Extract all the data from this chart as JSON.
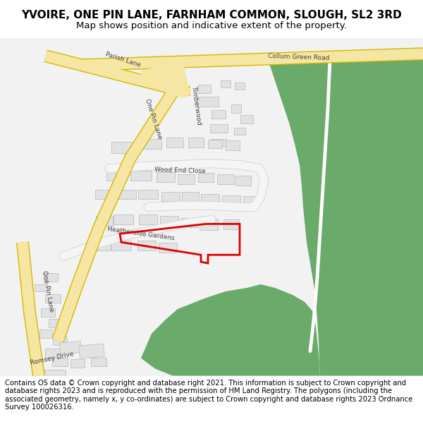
{
  "title": "YVOIRE, ONE PIN LANE, FARNHAM COMMON, SLOUGH, SL2 3RD",
  "subtitle": "Map shows position and indicative extent of the property.",
  "footer": "Contains OS data © Crown copyright and database right 2021. This information is subject to Crown copyright and database rights 2023 and is reproduced with the permission of HM Land Registry. The polygons (including the associated geometry, namely x, y co-ordinates) are subject to Crown copyright and database rights 2023 Ordnance Survey 100026316.",
  "bg_color": "#ffffff",
  "map_bg": "#f2f2f2",
  "road_fill": "#f5e6a3",
  "road_edge": "#d4b800",
  "bldg_fill": "#e2e2e2",
  "bldg_edge": "#b8b8b8",
  "green_fill": "#6aaa6a",
  "white_track": "#ffffff",
  "red_boundary": "#dd0000",
  "title_fontsize": 11,
  "subtitle_fontsize": 9.5,
  "footer_fontsize": 7.2,
  "label_fontsize": 6.5
}
